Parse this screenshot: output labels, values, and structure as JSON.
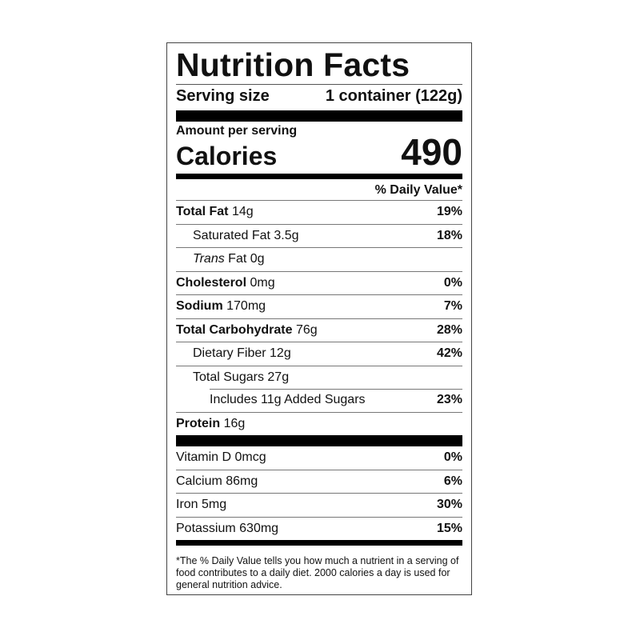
{
  "title": "Nutrition Facts",
  "serving": {
    "label": "Serving size",
    "value": "1 container (122g)"
  },
  "amount_per_serving": "Amount per serving",
  "calories": {
    "label": "Calories",
    "value": "490"
  },
  "dv_header": "% Daily Value*",
  "nutrients": [
    {
      "name": "Total Fat",
      "amount": "14g",
      "dv": "19%"
    },
    {
      "name": "Saturated Fat",
      "amount": "3.5g",
      "dv": "18%"
    },
    {
      "name": "Trans",
      "name_rest": "Fat",
      "amount": "0g",
      "dv": ""
    },
    {
      "name": "Cholesterol",
      "amount": "0mg",
      "dv": "0%"
    },
    {
      "name": "Sodium",
      "amount": "170mg",
      "dv": "7%"
    },
    {
      "name": "Total Carbohydrate",
      "amount": "76g",
      "dv": "28%"
    },
    {
      "name": "Dietary Fiber",
      "amount": "12g",
      "dv": "42%"
    },
    {
      "name": "Total Sugars",
      "amount": "27g",
      "dv": ""
    },
    {
      "name": "Includes 11g Added Sugars",
      "amount": "",
      "dv": "23%"
    },
    {
      "name": "Protein",
      "amount": "16g",
      "dv": ""
    }
  ],
  "vitamins": [
    {
      "name": "Vitamin D",
      "amount": "0mcg",
      "dv": "0%"
    },
    {
      "name": "Calcium",
      "amount": "86mg",
      "dv": "6%"
    },
    {
      "name": "Iron",
      "amount": "5mg",
      "dv": "30%"
    },
    {
      "name": "Potassium",
      "amount": "630mg",
      "dv": "15%"
    }
  ],
  "footnote": "*The % Daily Value tells you how much a nutrient in a serving of food contributes to a daily diet. 2000 calories a day is used for general nutrition advice."
}
